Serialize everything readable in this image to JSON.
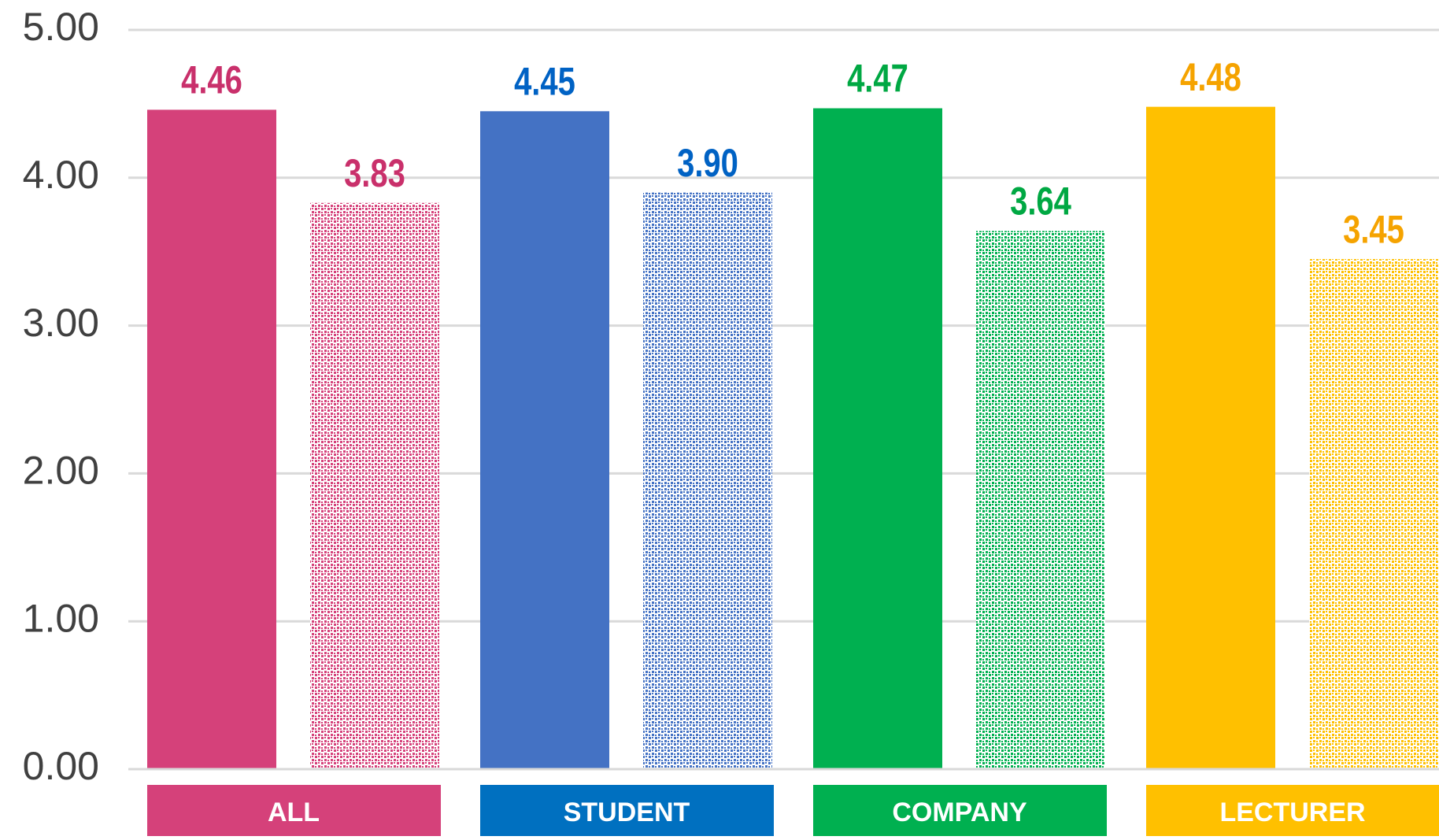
{
  "chart_data": {
    "type": "bar",
    "categories": [
      "ALL",
      "STUDENT",
      "COMPANY",
      "LECTURER"
    ],
    "colors": [
      "#d5417a",
      "#4472c4",
      "#00b050",
      "#ffc000"
    ],
    "category_box_colors": [
      "#d5417a",
      "#0070c0",
      "#00b050",
      "#ffc000"
    ],
    "label_colors": [
      "#c9306b",
      "#0062c4",
      "#00a843",
      "#f5a300"
    ],
    "series": [
      {
        "pattern": false,
        "values": [
          4.46,
          4.45,
          4.47,
          4.48
        ],
        "value_labels": [
          "4.46",
          "4.45",
          "4.47",
          "4.48"
        ]
      },
      {
        "pattern": true,
        "values": [
          3.83,
          3.9,
          3.64,
          3.45
        ],
        "value_labels": [
          "3.83",
          "3.90",
          "3.64",
          "3.45"
        ]
      }
    ],
    "ylim": [
      0,
      5
    ],
    "yticks": [
      {
        "value": 0,
        "label": "0.00"
      },
      {
        "value": 1,
        "label": "1.00"
      },
      {
        "value": 2,
        "label": "2.00"
      },
      {
        "value": 3,
        "label": "3.00"
      },
      {
        "value": 4,
        "label": "4.00"
      },
      {
        "value": 5,
        "label": "5.00"
      }
    ],
    "grid": true
  }
}
